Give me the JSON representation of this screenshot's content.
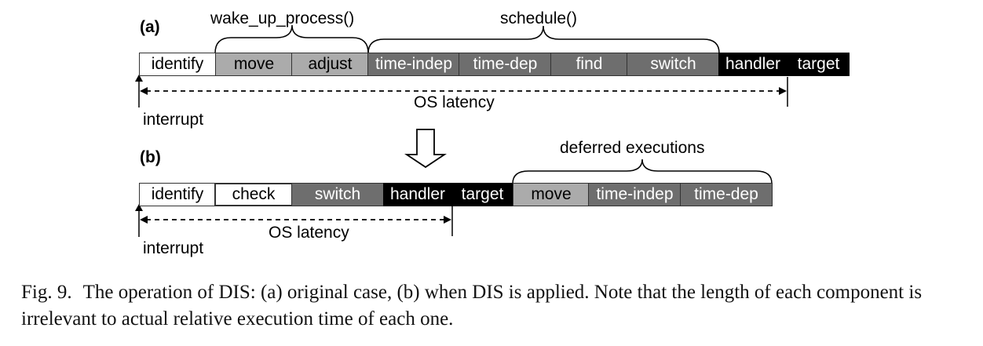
{
  "figure": {
    "part_a": {
      "label": "(a)",
      "groups": [
        {
          "label": "wake_up_process()"
        },
        {
          "label": "schedule()"
        }
      ],
      "blocks": [
        {
          "label": "identify",
          "shade": "white"
        },
        {
          "label": "move",
          "shade": "light"
        },
        {
          "label": "adjust",
          "shade": "light"
        },
        {
          "label": "time-indep",
          "shade": "dark"
        },
        {
          "label": "time-dep",
          "shade": "dark"
        },
        {
          "label": "find",
          "shade": "dark"
        },
        {
          "label": "switch",
          "shade": "dark"
        },
        {
          "label": "handler",
          "shade": "black"
        },
        {
          "label": "target",
          "shade": "black"
        }
      ],
      "latency_label": "OS latency",
      "interrupt_label": "interrupt"
    },
    "part_b": {
      "label": "(b)",
      "groups": [
        {
          "label": "deferred executions"
        }
      ],
      "blocks": [
        {
          "label": "identify",
          "shade": "white"
        },
        {
          "label": "check",
          "shade": "white"
        },
        {
          "label": "switch",
          "shade": "dark"
        },
        {
          "label": "handler",
          "shade": "black"
        },
        {
          "label": "target",
          "shade": "black"
        },
        {
          "label": "move",
          "shade": "light"
        },
        {
          "label": "time-indep",
          "shade": "dark"
        },
        {
          "label": "time-dep",
          "shade": "dark"
        }
      ],
      "latency_label": "OS latency",
      "interrupt_label": "interrupt"
    },
    "colors": {
      "white": "#ffffff",
      "light": "#ababab",
      "dark": "#6e6e6e",
      "black": "#000000"
    },
    "caption": {
      "number": "Fig. 9.",
      "text": "The operation of DIS: (a) original case, (b) when DIS is applied. Note that the length of each component is irrelevant to actual relative execution time of each one."
    }
  }
}
